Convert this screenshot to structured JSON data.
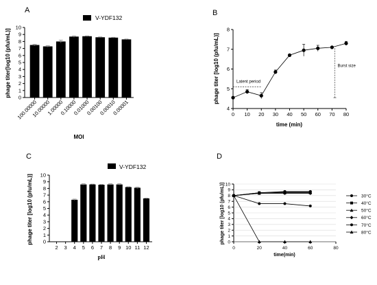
{
  "panels": {
    "A": "A",
    "B": "B",
    "C": "C",
    "D": "D"
  },
  "chart_data": [
    {
      "panel": "A",
      "type": "bar",
      "title": "",
      "legend": [
        "V-YDF132"
      ],
      "xlabel": "MOI",
      "ylabel": "phage titer[log10 (pfu/mL)]",
      "ylim": [
        0,
        10
      ],
      "yticks": [
        "0",
        "1",
        "2",
        "3",
        "4",
        "5",
        "6",
        "7",
        "8",
        "9",
        "10"
      ],
      "categories": [
        "100.00000",
        "10.00000",
        "1.00000",
        "0.10000",
        "0.01000",
        "0.00100",
        "0.00010",
        "0.00001"
      ],
      "values": [
        7.5,
        7.3,
        8.0,
        8.7,
        8.75,
        8.6,
        8.55,
        8.3
      ],
      "errors": [
        0.1,
        0.1,
        0.2,
        0.1,
        0.05,
        0.05,
        0.05,
        0.05
      ],
      "color": "#000000"
    },
    {
      "panel": "B",
      "type": "line",
      "title": "",
      "xlabel": "time (min)",
      "ylabel": "phage titer [log10 (pfu/mL)]",
      "xlim": [
        0,
        80
      ],
      "ylim": [
        4,
        8
      ],
      "xticks": [
        "0",
        "10",
        "20",
        "30",
        "40",
        "50",
        "60",
        "70",
        "80"
      ],
      "yticks": [
        "4",
        "5",
        "6",
        "7",
        "8"
      ],
      "x": [
        0,
        10,
        20,
        30,
        40,
        50,
        60,
        70,
        80
      ],
      "y": [
        4.55,
        4.85,
        4.65,
        5.85,
        6.7,
        6.95,
        7.05,
        7.1,
        7.3
      ],
      "errors": [
        0.05,
        0.1,
        0.15,
        0.1,
        0.05,
        0.3,
        0.15,
        0.05,
        0.1
      ],
      "annotations": [
        "Latent period",
        "Burst size"
      ],
      "latent_period": {
        "x": [
          0,
          20
        ],
        "y": 5.1
      },
      "burst_size": {
        "x": 72,
        "y": [
          4.55,
          7.1
        ]
      },
      "color": "#000000"
    },
    {
      "panel": "C",
      "type": "bar",
      "title": "",
      "legend": [
        "V-YDF132"
      ],
      "xlabel": "pH",
      "ylabel": "phage titer [log10 (pfu/mL)]",
      "ylim": [
        0,
        10
      ],
      "yticks": [
        "0",
        "1",
        "2",
        "3",
        "4",
        "5",
        "6",
        "7",
        "8",
        "9",
        "10"
      ],
      "categories": [
        "2",
        "3",
        "4",
        "5",
        "6",
        "7",
        "8",
        "9",
        "10",
        "11",
        "12"
      ],
      "values": [
        0,
        0,
        6.3,
        8.6,
        8.6,
        8.55,
        8.6,
        8.6,
        8.2,
        8.1,
        6.5
      ],
      "errors": [
        0,
        0,
        0.1,
        0.1,
        0.05,
        0.05,
        0.1,
        0.1,
        0.05,
        0.1,
        0.05
      ],
      "color": "#000000"
    },
    {
      "panel": "D",
      "type": "line",
      "title": "",
      "xlabel": "time(min)",
      "ylabel": "phage titer [log10 (pfu/mL)]",
      "xlim": [
        0,
        80
      ],
      "ylim": [
        0,
        10
      ],
      "xticks": [
        "0",
        "20",
        "40",
        "60",
        "80"
      ],
      "yticks": [
        "0",
        "1",
        "2",
        "3",
        "4",
        "5",
        "6",
        "7",
        "8",
        "9",
        "10"
      ],
      "x": [
        0,
        20,
        40,
        60
      ],
      "series": [
        {
          "name": "30°C",
          "values": [
            8.0,
            8.5,
            8.7,
            8.7
          ]
        },
        {
          "name": "40°C",
          "values": [
            8.0,
            8.5,
            8.6,
            8.6
          ]
        },
        {
          "name": "50°C",
          "values": [
            8.0,
            8.4,
            8.5,
            8.5
          ]
        },
        {
          "name": "60°C",
          "values": [
            8.0,
            8.4,
            8.4,
            8.4
          ]
        },
        {
          "name": "70°C",
          "values": [
            8.0,
            6.6,
            6.6,
            6.2
          ]
        },
        {
          "name": "80°C",
          "values": [
            8.0,
            0,
            0,
            0
          ]
        }
      ],
      "color": "#000000"
    }
  ]
}
